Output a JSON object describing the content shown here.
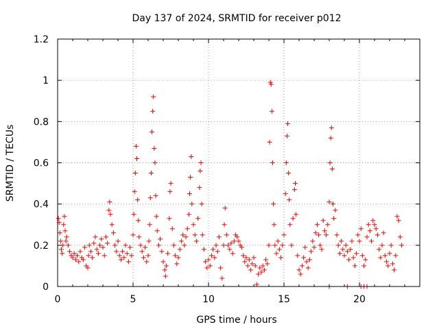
{
  "chart_data": {
    "type": "scatter",
    "title": "Day 137 of 2024, SRMTID for receiver p012",
    "xlabel": "GPS time / hours",
    "ylabel": "SRMTID / TECUs",
    "xlim": [
      0,
      24
    ],
    "ylim": [
      0,
      1.2
    ],
    "x_ticks": [
      0,
      5,
      10,
      15,
      20
    ],
    "x_tick_labels": [
      "0",
      "5",
      "10",
      "15",
      "20"
    ],
    "y_ticks": [
      0,
      0.2,
      0.4,
      0.6,
      0.8,
      1.0,
      1.2
    ],
    "y_tick_labels": [
      "0",
      "0.2",
      "0.4",
      "0.6",
      "0.8",
      "1",
      "1.2"
    ],
    "grid": true,
    "marker": "plus",
    "marker_color": "#ff0000",
    "series": [
      {
        "name": "SRMTID",
        "points": [
          [
            0.05,
            0.33
          ],
          [
            0.1,
            0.31
          ],
          [
            0.15,
            0.26
          ],
          [
            0.2,
            0.22
          ],
          [
            0.25,
            0.18
          ],
          [
            0.3,
            0.16
          ],
          [
            0.35,
            0.2
          ],
          [
            0.4,
            0.3
          ],
          [
            0.45,
            0.34
          ],
          [
            0.5,
            0.27
          ],
          [
            0.55,
            0.22
          ],
          [
            0.6,
            0.24
          ],
          [
            0.7,
            0.2
          ],
          [
            0.8,
            0.17
          ],
          [
            0.9,
            0.15
          ],
          [
            1.0,
            0.14
          ],
          [
            1.1,
            0.16
          ],
          [
            1.2,
            0.13
          ],
          [
            1.3,
            0.15
          ],
          [
            1.4,
            0.12
          ],
          [
            1.5,
            0.17
          ],
          [
            1.6,
            0.14
          ],
          [
            1.7,
            0.13
          ],
          [
            1.8,
            0.19
          ],
          [
            1.9,
            0.1
          ],
          [
            2.0,
            0.09
          ],
          [
            2.05,
            0.15
          ],
          [
            2.1,
            0.2
          ],
          [
            2.2,
            0.17
          ],
          [
            2.3,
            0.14
          ],
          [
            2.4,
            0.21
          ],
          [
            2.5,
            0.24
          ],
          [
            2.6,
            0.18
          ],
          [
            2.7,
            0.16
          ],
          [
            2.8,
            0.2
          ],
          [
            2.9,
            0.23
          ],
          [
            3.0,
            0.19
          ],
          [
            3.1,
            0.15
          ],
          [
            3.2,
            0.24
          ],
          [
            3.3,
            0.21
          ],
          [
            3.4,
            0.37
          ],
          [
            3.45,
            0.41
          ],
          [
            3.5,
            0.35
          ],
          [
            3.6,
            0.3
          ],
          [
            3.7,
            0.26
          ],
          [
            3.8,
            0.2
          ],
          [
            3.9,
            0.17
          ],
          [
            4.0,
            0.22
          ],
          [
            4.1,
            0.15
          ],
          [
            4.2,
            0.13
          ],
          [
            4.3,
            0.17
          ],
          [
            4.4,
            0.14
          ],
          [
            4.5,
            0.2
          ],
          [
            4.6,
            0.16
          ],
          [
            4.7,
            0.12
          ],
          [
            4.8,
            0.19
          ],
          [
            4.9,
            0.15
          ],
          [
            5.0,
            0.25
          ],
          [
            5.05,
            0.35
          ],
          [
            5.1,
            0.46
          ],
          [
            5.15,
            0.55
          ],
          [
            5.2,
            0.68
          ],
          [
            5.25,
            0.62
          ],
          [
            5.3,
            0.42
          ],
          [
            5.35,
            0.32
          ],
          [
            5.4,
            0.24
          ],
          [
            5.5,
            0.2
          ],
          [
            5.6,
            0.17
          ],
          [
            5.7,
            0.14
          ],
          [
            5.8,
            0.19
          ],
          [
            5.9,
            0.12
          ],
          [
            6.0,
            0.15
          ],
          [
            6.05,
            0.22
          ],
          [
            6.1,
            0.3
          ],
          [
            6.15,
            0.43
          ],
          [
            6.2,
            0.55
          ],
          [
            6.25,
            0.75
          ],
          [
            6.3,
            0.85
          ],
          [
            6.35,
            0.92
          ],
          [
            6.4,
            0.67
          ],
          [
            6.45,
            0.6
          ],
          [
            6.5,
            0.44
          ],
          [
            6.55,
            0.34
          ],
          [
            6.6,
            0.27
          ],
          [
            6.7,
            0.2
          ],
          [
            6.8,
            0.23
          ],
          [
            6.9,
            0.17
          ],
          [
            7.0,
            0.12
          ],
          [
            7.1,
            0.08
          ],
          [
            7.15,
            0.05
          ],
          [
            7.2,
            0.1
          ],
          [
            7.3,
            0.16
          ],
          [
            7.4,
            0.33
          ],
          [
            7.45,
            0.46
          ],
          [
            7.5,
            0.5
          ],
          [
            7.6,
            0.28
          ],
          [
            7.7,
            0.2
          ],
          [
            7.8,
            0.15
          ],
          [
            7.9,
            0.11
          ],
          [
            8.0,
            0.14
          ],
          [
            8.1,
            0.18
          ],
          [
            8.2,
            0.22
          ],
          [
            8.3,
            0.25
          ],
          [
            8.4,
            0.2
          ],
          [
            8.5,
            0.24
          ],
          [
            8.6,
            0.28
          ],
          [
            8.7,
            0.35
          ],
          [
            8.75,
            0.45
          ],
          [
            8.8,
            0.53
          ],
          [
            8.85,
            0.63
          ],
          [
            8.9,
            0.4
          ],
          [
            9.0,
            0.3
          ],
          [
            9.1,
            0.25
          ],
          [
            9.2,
            0.22
          ],
          [
            9.3,
            0.33
          ],
          [
            9.4,
            0.48
          ],
          [
            9.45,
            0.56
          ],
          [
            9.5,
            0.6
          ],
          [
            9.55,
            0.4
          ],
          [
            9.6,
            0.25
          ],
          [
            9.7,
            0.18
          ],
          [
            9.8,
            0.12
          ],
          [
            9.9,
            0.09
          ],
          [
            10.0,
            0.13
          ],
          [
            10.1,
            0.1
          ],
          [
            10.2,
            0.15
          ],
          [
            10.3,
            0.18
          ],
          [
            10.4,
            0.14
          ],
          [
            10.5,
            0.2
          ],
          [
            10.6,
            0.17
          ],
          [
            10.7,
            0.24
          ],
          [
            10.8,
            0.09
          ],
          [
            10.9,
            0.04
          ],
          [
            11.0,
            0.2
          ],
          [
            11.05,
            0.3
          ],
          [
            11.1,
            0.38
          ],
          [
            11.2,
            0.25
          ],
          [
            11.3,
            0.2
          ],
          [
            11.4,
            0.18
          ],
          [
            11.5,
            0.21
          ],
          [
            11.6,
            0.16
          ],
          [
            11.7,
            0.22
          ],
          [
            11.8,
            0.25
          ],
          [
            11.9,
            0.24
          ],
          [
            12.0,
            0.22
          ],
          [
            12.1,
            0.2
          ],
          [
            12.2,
            0.19
          ],
          [
            12.3,
            0.15
          ],
          [
            12.4,
            0.12
          ],
          [
            12.5,
            0.14
          ],
          [
            12.6,
            0.1
          ],
          [
            12.7,
            0.13
          ],
          [
            12.8,
            0.08
          ],
          [
            12.9,
            0.11
          ],
          [
            13.0,
            0.14
          ],
          [
            13.1,
            0.1
          ],
          [
            13.2,
            0.01
          ],
          [
            13.3,
            0.06
          ],
          [
            13.4,
            0.09
          ],
          [
            13.5,
            0.07
          ],
          [
            13.6,
            0.1
          ],
          [
            13.7,
            0.08
          ],
          [
            13.8,
            0.13
          ],
          [
            13.9,
            0.11
          ],
          [
            14.0,
            0.2
          ],
          [
            14.05,
            0.7
          ],
          [
            14.1,
            0.99
          ],
          [
            14.15,
            0.98
          ],
          [
            14.2,
            0.85
          ],
          [
            14.25,
            0.6
          ],
          [
            14.3,
            0.4
          ],
          [
            14.35,
            0.3
          ],
          [
            14.4,
            0.2
          ],
          [
            14.5,
            0.16
          ],
          [
            14.6,
            0.22
          ],
          [
            14.7,
            0.18
          ],
          [
            14.8,
            0.14
          ],
          [
            14.9,
            0.2
          ],
          [
            15.0,
            0.25
          ],
          [
            15.1,
            0.45
          ],
          [
            15.15,
            0.6
          ],
          [
            15.2,
            0.73
          ],
          [
            15.25,
            0.79
          ],
          [
            15.3,
            0.55
          ],
          [
            15.35,
            0.42
          ],
          [
            15.4,
            0.3
          ],
          [
            15.5,
            0.2
          ],
          [
            15.6,
            0.33
          ],
          [
            15.7,
            0.47
          ],
          [
            15.75,
            0.5
          ],
          [
            15.8,
            0.35
          ],
          [
            15.9,
            0.15
          ],
          [
            16.0,
            0.08
          ],
          [
            16.1,
            0.06
          ],
          [
            16.2,
            0.1
          ],
          [
            16.3,
            0.14
          ],
          [
            16.4,
            0.19
          ],
          [
            16.5,
            0.12
          ],
          [
            16.6,
            0.09
          ],
          [
            16.7,
            0.13
          ],
          [
            16.8,
            0.17
          ],
          [
            16.9,
            0.22
          ],
          [
            17.0,
            0.19
          ],
          [
            17.1,
            0.26
          ],
          [
            17.2,
            0.3
          ],
          [
            17.3,
            0.25
          ],
          [
            17.4,
            0.2
          ],
          [
            17.5,
            0.18
          ],
          [
            17.6,
            0.32
          ],
          [
            17.7,
            0.27
          ],
          [
            17.8,
            0.25
          ],
          [
            17.9,
            0.3
          ],
          [
            18.0,
            0.41
          ],
          [
            18.05,
            0.6
          ],
          [
            18.1,
            0.72
          ],
          [
            18.15,
            0.77
          ],
          [
            18.2,
            0.57
          ],
          [
            18.25,
            0.4
          ],
          [
            18.3,
            0.33
          ],
          [
            18.4,
            0.37
          ],
          [
            18.5,
            0.25
          ],
          [
            18.6,
            0.2
          ],
          [
            18.7,
            0.16
          ],
          [
            18.8,
            0.22
          ],
          [
            18.9,
            0.18
          ],
          [
            19.0,
            0.15
          ],
          [
            19.1,
            0.2
          ],
          [
            19.2,
            0.17
          ],
          [
            19.3,
            0.13
          ],
          [
            19.4,
            0.18
          ],
          [
            19.5,
            0.22
          ],
          [
            19.6,
            0.14
          ],
          [
            19.7,
            0.1
          ],
          [
            19.8,
            0.16
          ],
          [
            19.9,
            0.25
          ],
          [
            20.0,
            0.22
          ],
          [
            20.1,
            0.28
          ],
          [
            20.2,
            0.15
          ],
          [
            20.3,
            0.1
          ],
          [
            20.4,
            0.13
          ],
          [
            20.5,
            0.24
          ],
          [
            20.6,
            0.3
          ],
          [
            20.7,
            0.27
          ],
          [
            20.8,
            0.22
          ],
          [
            20.9,
            0.32
          ],
          [
            21.0,
            0.3
          ],
          [
            21.1,
            0.28
          ],
          [
            21.2,
            0.25
          ],
          [
            21.3,
            0.18
          ],
          [
            21.4,
            0.14
          ],
          [
            21.5,
            0.2
          ],
          [
            21.6,
            0.26
          ],
          [
            21.7,
            0.15
          ],
          [
            21.8,
            0.12
          ],
          [
            21.9,
            0.1
          ],
          [
            22.0,
            0.16
          ],
          [
            22.1,
            0.2
          ],
          [
            22.2,
            0.11
          ],
          [
            22.3,
            0.08
          ],
          [
            22.4,
            0.15
          ],
          [
            22.5,
            0.34
          ],
          [
            22.6,
            0.32
          ],
          [
            22.7,
            0.24
          ],
          [
            22.8,
            0.2
          ],
          [
            18.0,
            0.0
          ],
          [
            19.2,
            0.0
          ],
          [
            20.1,
            0.0
          ],
          [
            20.3,
            0.0
          ],
          [
            20.5,
            0.0
          ]
        ]
      }
    ]
  }
}
